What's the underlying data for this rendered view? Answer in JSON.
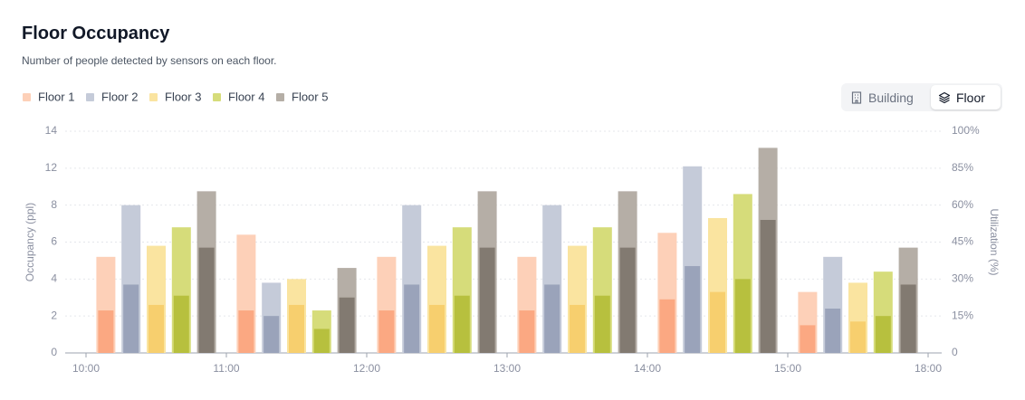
{
  "chart_data": {
    "type": "bar",
    "title": "Floor Occupancy",
    "subtitle": "Number of people detected by sensors on each floor.",
    "y_label": "Occupancy (ppl)",
    "y2_label": "Utilization (%)",
    "xticks": [
      "10:00",
      "11:00",
      "12:00",
      "13:00",
      "14:00",
      "15:00",
      "18:00"
    ],
    "categories": [
      null,
      null,
      null,
      null,
      null,
      null
    ],
    "ylim": [
      0,
      14
    ],
    "yticks": [
      0,
      2,
      4,
      6,
      8,
      12,
      14
    ],
    "y2lim": [
      0,
      100
    ],
    "y2ticks": [
      {
        "value": 0,
        "label": "0"
      },
      {
        "value": 15,
        "label": "15%"
      },
      {
        "value": 30,
        "label": "30%"
      },
      {
        "value": 45,
        "label": "45%"
      },
      {
        "value": 60,
        "label": "60%"
      },
      {
        "value": 85,
        "label": "85%"
      },
      {
        "value": 100,
        "label": "100%"
      }
    ],
    "grid": true,
    "legend": "top-left",
    "series": [
      {
        "name": "Floor 1",
        "color": "#fdd0b8",
        "inner_color": "#fba882",
        "values": [
          5.2,
          6.4,
          5.2,
          5.2,
          6.5,
          3.3
        ],
        "inner_values": [
          2.3,
          2.3,
          2.3,
          2.3,
          2.9,
          1.5
        ]
      },
      {
        "name": "Floor 2",
        "color": "#c5cbd9",
        "inner_color": "#9aa3ba",
        "values": [
          8,
          3.8,
          8,
          8,
          12.1,
          5.2
        ],
        "inner_values": [
          3.7,
          2.0,
          3.7,
          3.7,
          4.7,
          2.4
        ]
      },
      {
        "name": "Floor 3",
        "color": "#fae4a0",
        "inner_color": "#f7cf6e",
        "values": [
          5.8,
          4.0,
          5.8,
          5.8,
          7.3,
          3.8
        ],
        "inner_values": [
          2.6,
          2.6,
          2.6,
          2.6,
          3.3,
          1.7
        ]
      },
      {
        "name": "Floor 4",
        "color": "#d6dc7a",
        "inner_color": "#b7c03e",
        "values": [
          6.8,
          2.3,
          6.8,
          6.8,
          9.2,
          4.4
        ],
        "inner_values": [
          3.1,
          1.3,
          3.1,
          3.1,
          4.0,
          2.0
        ]
      },
      {
        "name": "Floor 5",
        "color": "#b5aea6",
        "inner_color": "#827a71",
        "values": [
          9.5,
          4.6,
          9.5,
          9.5,
          13.1,
          5.7
        ],
        "inner_values": [
          5.7,
          3.0,
          5.7,
          5.7,
          7.2,
          3.7
        ]
      }
    ]
  },
  "toggle": {
    "options": [
      "Building",
      "Floor"
    ],
    "active": 1
  }
}
